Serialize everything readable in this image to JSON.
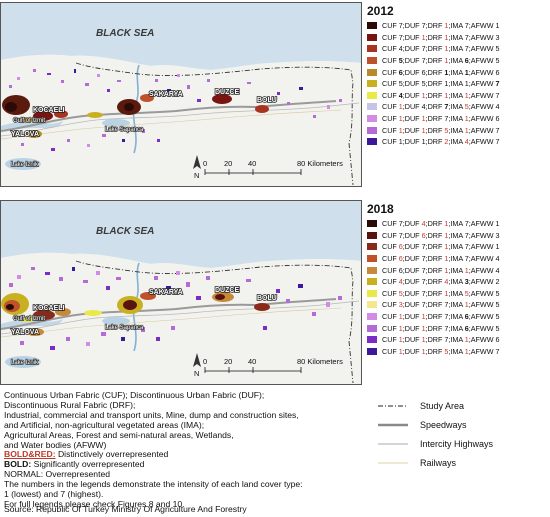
{
  "map_labels": {
    "sea": "BLACK SEA",
    "cities": [
      "KOCAELI",
      "SAKARYA",
      "DUZCE",
      "BOLU",
      "YALOVA"
    ],
    "small": [
      "Gulf of Izmit",
      "Lake Sapanca",
      "Lake Iznik"
    ],
    "scale": [
      "0",
      "20",
      "40",
      "80 Kilometers"
    ],
    "north": "N"
  },
  "legend_colors": [
    "#2b0a08",
    "#7a1410",
    "#a8331e",
    "#c0522a",
    "#b98a2a",
    "#c9b020",
    "#e9e94a",
    "#f2e88c",
    "#c8c4e8",
    "#b56ad8",
    "#d28ce8",
    "#7a2bc8",
    "#3a1a9a"
  ],
  "legends": [
    {
      "year": "2012",
      "rows": [
        {
          "color": "#2b0a08",
          "items": [
            [
              "CUF",
              "7",
              "n"
            ],
            [
              "DUF",
              "7",
              "n"
            ],
            [
              "DRF",
              "1",
              "s"
            ],
            [
              "IMA",
              "7",
              "n"
            ],
            [
              "AFWW",
              "1",
              "n"
            ]
          ]
        },
        {
          "color": "#7a1410",
          "items": [
            [
              "CUF",
              "7",
              "n"
            ],
            [
              "DUF",
              "1",
              "s"
            ],
            [
              "DRF",
              "1",
              "s"
            ],
            [
              "IMA",
              "7",
              "n"
            ],
            [
              "AFWW",
              "3",
              "n"
            ]
          ]
        },
        {
          "color": "#a8331e",
          "items": [
            [
              "CUF",
              "4",
              "n"
            ],
            [
              "DUF",
              "7",
              "n"
            ],
            [
              "DRF",
              "1",
              "s"
            ],
            [
              "IMA",
              "7",
              "n"
            ],
            [
              "AFWW",
              "5",
              "n"
            ]
          ]
        },
        {
          "color": "#c0522a",
          "items": [
            [
              "CUF",
              "5",
              "b"
            ],
            [
              "DUF",
              "7",
              "n"
            ],
            [
              "DRF",
              "1",
              "s"
            ],
            [
              "IMA",
              "6",
              "b"
            ],
            [
              "AFWW",
              "5",
              "n"
            ]
          ]
        },
        {
          "color": "#b98a2a",
          "items": [
            [
              "CUF",
              "6",
              "b"
            ],
            [
              "DUF",
              "6",
              "n"
            ],
            [
              "DRF",
              "1",
              "b"
            ],
            [
              "IMA",
              "1",
              "b"
            ],
            [
              "AFWW",
              "6",
              "n"
            ]
          ]
        },
        {
          "color": "#c9b020",
          "items": [
            [
              "CUF",
              "5",
              "n"
            ],
            [
              "DUF",
              "5",
              "n"
            ],
            [
              "DRF",
              "1",
              "n"
            ],
            [
              "IMA",
              "1",
              "n"
            ],
            [
              "AFWW",
              "7",
              "b"
            ]
          ]
        },
        {
          "color": "#e9e94a",
          "items": [
            [
              "CUF",
              "4",
              "b"
            ],
            [
              "DUF",
              "1",
              "s"
            ],
            [
              "DRF",
              "1",
              "s"
            ],
            [
              "IMA",
              "1",
              "s"
            ],
            [
              "AFWW",
              "7",
              "n"
            ]
          ]
        },
        {
          "color": "#c8c4e8",
          "items": [
            [
              "CUF",
              "1",
              "s"
            ],
            [
              "DUF",
              "4",
              "n"
            ],
            [
              "DRF",
              "7",
              "b"
            ],
            [
              "IMA",
              "5",
              "s"
            ],
            [
              "AFWW",
              "4",
              "n"
            ]
          ]
        },
        {
          "color": "#d28ce8",
          "items": [
            [
              "CUF",
              "1",
              "s"
            ],
            [
              "DUF",
              "1",
              "s"
            ],
            [
              "DRF",
              "7",
              "n"
            ],
            [
              "IMA",
              "1",
              "s"
            ],
            [
              "AFWW",
              "6",
              "n"
            ]
          ]
        },
        {
          "color": "#b56ad8",
          "items": [
            [
              "CUF",
              "1",
              "s"
            ],
            [
              "DUF",
              "1",
              "s"
            ],
            [
              "DRF",
              "5",
              "s"
            ],
            [
              "IMA",
              "1",
              "s"
            ],
            [
              "AFWW",
              "7",
              "n"
            ]
          ]
        },
        {
          "color": "#3a1a9a",
          "items": [
            [
              "CUF",
              "1",
              "n"
            ],
            [
              "DUF",
              "1",
              "n"
            ],
            [
              "DRF",
              "2",
              "s"
            ],
            [
              "IMA",
              "4",
              "s"
            ],
            [
              "AFWW",
              "7",
              "n"
            ]
          ]
        }
      ]
    },
    {
      "year": "2018",
      "rows": [
        {
          "color": "#2b0a08",
          "items": [
            [
              "CUF",
              "7",
              "n"
            ],
            [
              "DUF",
              "4",
              "s"
            ],
            [
              "DRF",
              "1",
              "s"
            ],
            [
              "IMA",
              "7",
              "n"
            ],
            [
              "AFWW",
              "1",
              "n"
            ]
          ]
        },
        {
          "color": "#5a1410",
          "items": [
            [
              "CUF",
              "7",
              "n"
            ],
            [
              "DUF",
              "6",
              "s"
            ],
            [
              "DRF",
              "1",
              "s"
            ],
            [
              "IMA",
              "7",
              "n"
            ],
            [
              "AFWW",
              "3",
              "n"
            ]
          ]
        },
        {
          "color": "#8a2a1a",
          "items": [
            [
              "CUF",
              "6",
              "s"
            ],
            [
              "DUF",
              "7",
              "n"
            ],
            [
              "DRF",
              "1",
              "s"
            ],
            [
              "IMA",
              "7",
              "n"
            ],
            [
              "AFWW",
              "1",
              "n"
            ]
          ]
        },
        {
          "color": "#c0522a",
          "items": [
            [
              "CUF",
              "6",
              "s"
            ],
            [
              "DUF",
              "7",
              "n"
            ],
            [
              "DRF",
              "1",
              "s"
            ],
            [
              "IMA",
              "7",
              "n"
            ],
            [
              "AFWW",
              "4",
              "n"
            ]
          ]
        },
        {
          "color": "#c78a3a",
          "items": [
            [
              "CUF",
              "6",
              "n"
            ],
            [
              "DUF",
              "7",
              "n"
            ],
            [
              "DRF",
              "1",
              "s"
            ],
            [
              "IMA",
              "1",
              "s"
            ],
            [
              "AFWW",
              "4",
              "n"
            ]
          ]
        },
        {
          "color": "#c9b020",
          "items": [
            [
              "CUF",
              "4",
              "s"
            ],
            [
              "DUF",
              "7",
              "n"
            ],
            [
              "DRF",
              "4",
              "s"
            ],
            [
              "IMA",
              "3",
              "b"
            ],
            [
              "AFWW",
              "2",
              "n"
            ]
          ]
        },
        {
          "color": "#e9e94a",
          "items": [
            [
              "CUF",
              "5",
              "s"
            ],
            [
              "DUF",
              "7",
              "n"
            ],
            [
              "DRF",
              "1",
              "s"
            ],
            [
              "IMA",
              "5",
              "s"
            ],
            [
              "AFWW",
              "5",
              "n"
            ]
          ]
        },
        {
          "color": "#f2e88c",
          "items": [
            [
              "CUF",
              "3",
              "s"
            ],
            [
              "DUF",
              "7",
              "n"
            ],
            [
              "DRF",
              "7",
              "n"
            ],
            [
              "IMA",
              "1",
              "s"
            ],
            [
              "AFWW",
              "5",
              "n"
            ]
          ]
        },
        {
          "color": "#d28ce8",
          "items": [
            [
              "CUF",
              "1",
              "s"
            ],
            [
              "DUF",
              "1",
              "s"
            ],
            [
              "DRF",
              "7",
              "n"
            ],
            [
              "IMA",
              "6",
              "b"
            ],
            [
              "AFWW",
              "5",
              "n"
            ]
          ]
        },
        {
          "color": "#b56ad8",
          "items": [
            [
              "CUF",
              "1",
              "s"
            ],
            [
              "DUF",
              "1",
              "s"
            ],
            [
              "DRF",
              "7",
              "n"
            ],
            [
              "IMA",
              "6",
              "b"
            ],
            [
              "AFWW",
              "5",
              "n"
            ]
          ]
        },
        {
          "color": "#7a2bc8",
          "items": [
            [
              "CUF",
              "1",
              "s"
            ],
            [
              "DUF",
              "1",
              "s"
            ],
            [
              "DRF",
              "7",
              "n"
            ],
            [
              "IMA",
              "1",
              "s"
            ],
            [
              "AFWW",
              "6",
              "n"
            ]
          ]
        },
        {
          "color": "#3a1a9a",
          "items": [
            [
              "CUF",
              "1",
              "s"
            ],
            [
              "DUF",
              "1",
              "s"
            ],
            [
              "DRF",
              "5",
              "s"
            ],
            [
              "IMA",
              "1",
              "s"
            ],
            [
              "AFWW",
              "7",
              "n"
            ]
          ]
        }
      ]
    }
  ],
  "notes": {
    "defs1": "Continuous Urban Fabric (CUF); Discontinuous Urban Fabric (DUF);",
    "defs2": "Discontinuous Rural Fabric (DRF);",
    "defs3": "Industrial, commercial and transport units, Mine, dump and construction sites,",
    "defs4": "and Artificial, non-agricultural vegetated areas (IMA);",
    "defs5": "Agricultural Areas, Forest and semi-natural areas, Wetlands,",
    "defs6": "and Water bodies (AFWW)",
    "redbold_key": "BOLD&RED:",
    "redbold_text": " Distinctively overrepresented",
    "bold_key": "BOLD:",
    "bold_text": " Significantly overrepresented",
    "normal": "NORMAL: Overrepresented",
    "intensity1": "The numbers in the legends demonstrate the intensity of each land cover type:",
    "intensity2": "1 (lowest) and 7 (highest).",
    "full": "For full legends please check Figures 8 and 10.",
    "source": "Source: Republic Of Turkey Ministry Of Agriculture And Forestry"
  },
  "map_key": [
    {
      "label": "Study Area",
      "symbol": "study-area"
    },
    {
      "label": "Speedways",
      "symbol": "speedway"
    },
    {
      "label": "Intercity Highways",
      "symbol": "highway"
    },
    {
      "label": "Railways",
      "symbol": "railway"
    }
  ]
}
